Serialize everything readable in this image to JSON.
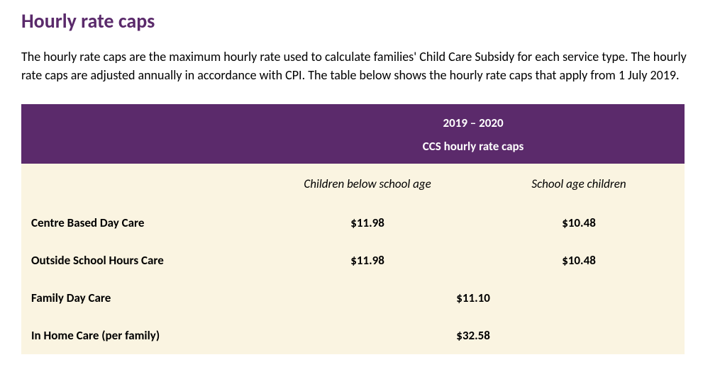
{
  "title": "Hourly rate caps",
  "title_color": "#5a2a6b",
  "intro": "The hourly rate caps are the maximum hourly rate used to calculate families' Child Care Subsidy for each service type. The hourly rate caps are adjusted annually in accordance with CPI. The table below shows the hourly rate caps that apply from 1 July 2019.",
  "table": {
    "header_bg": "#5b2a6b",
    "header_text_color": "#ffffff",
    "body_bg": "#faf4e1",
    "text_color": "#000000",
    "header_line1": "2019 – 2020",
    "header_line2": "CCS hourly rate caps",
    "sub_headers": {
      "below_school": "Children below school age",
      "school_age": "School age children"
    },
    "rows": [
      {
        "label": "Centre Based Day Care",
        "below_school": "$11.98",
        "school_age": "$10.48",
        "merged": false
      },
      {
        "label": "Outside School Hours Care",
        "below_school": "$11.98",
        "school_age": "$10.48",
        "merged": false
      },
      {
        "label": "Family Day Care",
        "merged_value": "$11.10",
        "merged": true
      },
      {
        "label": "In Home Care (per family)",
        "merged_value": "$32.58",
        "merged": true
      }
    ]
  }
}
